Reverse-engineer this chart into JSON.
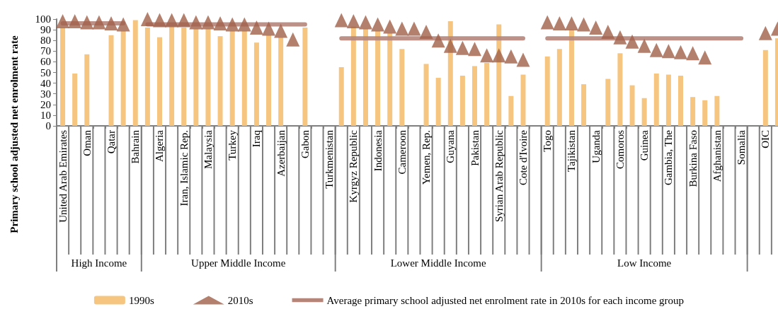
{
  "chart_data": {
    "type": "bar",
    "ylabel": "Primary school adjusted net enrolment rate",
    "categories": [
      "United Arab Emirates",
      null,
      "Oman",
      null,
      "Qatar",
      null,
      "Bahrain",
      null,
      "Algeria",
      null,
      "Iran, Islamic Rep.",
      null,
      "Malaysia",
      null,
      "Turkey",
      null,
      "Iraq",
      null,
      "Azerbaijan",
      null,
      "Gabon",
      null,
      "Turkmenistan",
      null,
      "Kyrgyz Republic",
      null,
      "Indonesia",
      null,
      "Cameroon",
      null,
      "Yemen, Rep.",
      null,
      "Guyana",
      null,
      "Pakistan",
      null,
      "Syrian Arab Republic",
      null,
      "Cote d'Ivoire",
      null,
      "Togo",
      null,
      "Tajikistan",
      null,
      "Uganda",
      null,
      "Comoros",
      null,
      "Guinea",
      null,
      "Gambia, The",
      null,
      "Burkina Faso",
      null,
      "Afghanistan",
      null,
      "Somalia",
      null,
      "OIC",
      null
    ],
    "series": [
      {
        "name": "1990s",
        "color": "#f6c57f",
        "values": [
          92,
          49,
          67,
          null,
          85,
          89,
          99,
          92,
          83,
          93,
          92,
          91,
          91,
          84,
          89,
          89,
          78,
          85,
          83,
          null,
          92,
          null,
          null,
          55,
          93,
          91,
          89,
          87,
          72,
          null,
          58,
          45,
          98,
          47,
          56,
          59,
          95,
          28,
          48,
          null,
          65,
          72,
          90,
          39,
          null,
          44,
          68,
          38,
          26,
          49,
          48,
          47,
          27,
          24,
          28,
          null,
          null,
          null,
          71,
          82
        ]
      },
      {
        "name": "2010s",
        "type": "scatter",
        "marker": "triangle",
        "color": "#a0604a",
        "values": [
          98,
          98,
          97,
          97,
          96,
          95,
          null,
          100,
          99,
          99,
          99,
          97,
          97,
          96,
          95,
          95,
          92,
          91,
          89,
          81,
          null,
          null,
          null,
          99,
          98,
          97,
          95,
          93,
          91,
          91,
          88,
          80,
          75,
          73,
          72,
          66,
          66,
          65,
          62,
          null,
          97,
          96,
          96,
          95,
          92,
          88,
          83,
          79,
          75,
          71,
          70,
          69,
          68,
          64,
          null,
          null,
          null,
          null,
          87,
          91
        ]
      },
      {
        "name": "Average primary school adjusted net enrolment rate in 2010s for each income group",
        "type": "line",
        "marker": "none",
        "color": "#b5857a",
        "values": [
          96,
          96,
          96,
          96,
          96,
          96,
          null,
          95,
          95,
          95,
          95,
          95,
          95,
          95,
          95,
          95,
          95,
          95,
          95,
          95,
          95,
          null,
          null,
          82,
          82,
          82,
          82,
          82,
          82,
          82,
          82,
          82,
          82,
          82,
          82,
          82,
          82,
          82,
          82,
          null,
          82,
          82,
          82,
          82,
          82,
          82,
          82,
          82,
          82,
          82,
          82,
          82,
          82,
          82,
          82,
          82,
          82,
          null,
          null,
          null
        ]
      }
    ],
    "ylim": [
      0,
      100
    ],
    "yticks": [
      0,
      10,
      20,
      30,
      40,
      50,
      60,
      70,
      80,
      90,
      100
    ],
    "grid": false,
    "legend": "bottom",
    "annotations": [
      "High Income",
      "Upper Middle Income",
      "Lower Middle Income",
      "Low Income"
    ]
  }
}
